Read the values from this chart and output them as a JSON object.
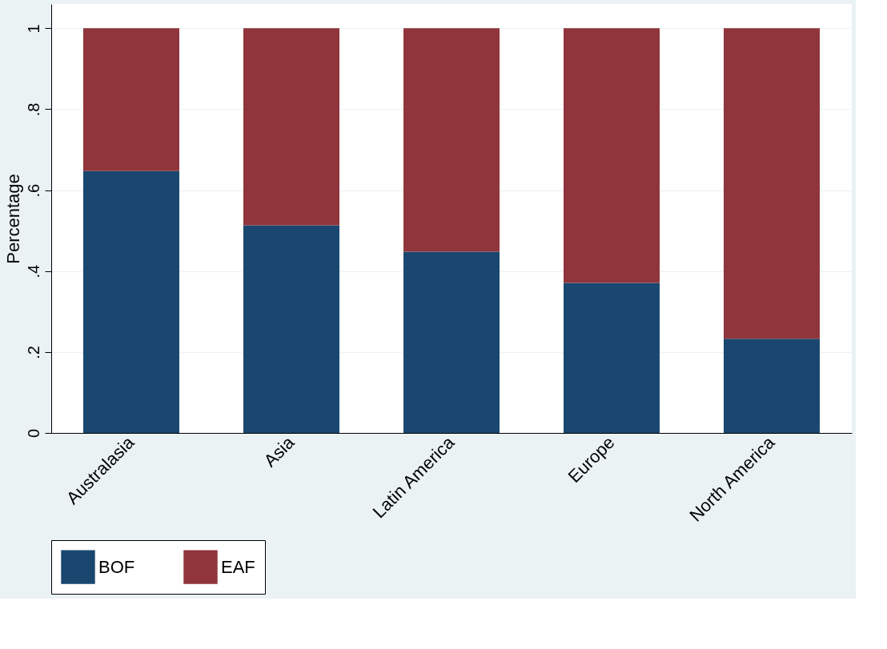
{
  "chart_data": {
    "type": "bar",
    "stacked": true,
    "ylabel": "Percentage",
    "categories": [
      "Australasia",
      "Asia",
      "Latin America",
      "Europe",
      "North America"
    ],
    "series": [
      {
        "name": "BOF",
        "color": "#1a476f",
        "values": [
          0.647,
          0.513,
          0.448,
          0.371,
          0.233
        ]
      },
      {
        "name": "EAF",
        "color": "#90353b",
        "values": [
          0.353,
          0.487,
          0.552,
          0.629,
          0.767
        ]
      }
    ],
    "ylim": [
      0,
      1.06
    ],
    "yticks": [
      {
        "value": 0,
        "label": "0"
      },
      {
        "value": 0.2,
        "label": ".2"
      },
      {
        "value": 0.4,
        "label": ".4"
      },
      {
        "value": 0.6,
        "label": ".6"
      },
      {
        "value": 0.8,
        "label": ".8"
      },
      {
        "value": 1,
        "label": "1"
      }
    ],
    "grid": "y",
    "legend": "bottom"
  }
}
